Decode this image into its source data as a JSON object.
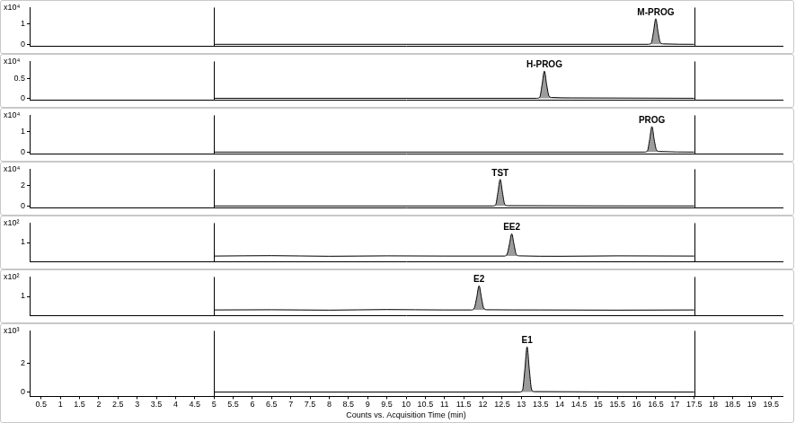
{
  "chart_data": [
    {
      "type": "line",
      "annotation": "M-PROG",
      "y_label": "x10⁴",
      "tick_labels": "y",
      "grid": false,
      "xlim": [
        0.2,
        19.8
      ],
      "ylim": [
        -0.1,
        1.8
      ],
      "yticks": [
        0,
        1
      ],
      "color": "#000000",
      "x": [
        5,
        16.3,
        16.38,
        16.44,
        16.5,
        16.56,
        16.62,
        16.7,
        17.5
      ],
      "values": [
        0,
        0,
        0.05,
        0.6,
        1.25,
        0.6,
        0.08,
        0.02,
        0
      ]
    },
    {
      "type": "line",
      "annotation": "H-PROG",
      "y_label": "x10⁴",
      "tick_labels": "y",
      "grid": false,
      "xlim": [
        0.2,
        19.8
      ],
      "ylim": [
        -0.05,
        0.95
      ],
      "yticks": [
        0,
        0.5
      ],
      "color": "#000000",
      "x": [
        5,
        13.4,
        13.48,
        13.54,
        13.6,
        13.66,
        13.72,
        13.8,
        14.3,
        17.5
      ],
      "values": [
        0,
        0,
        0.03,
        0.35,
        0.7,
        0.35,
        0.06,
        0.02,
        0.01,
        0
      ]
    },
    {
      "type": "line",
      "annotation": "PROG",
      "y_label": "x10⁴",
      "tick_labels": "y",
      "grid": false,
      "xlim": [
        0.2,
        19.8
      ],
      "ylim": [
        -0.1,
        1.8
      ],
      "yticks": [
        0,
        1
      ],
      "color": "#000000",
      "x": [
        5,
        16.2,
        16.28,
        16.34,
        16.4,
        16.46,
        16.52,
        16.6,
        17.5
      ],
      "values": [
        0,
        0,
        0.05,
        0.6,
        1.25,
        0.6,
        0.1,
        0.03,
        0
      ]
    },
    {
      "type": "line",
      "annotation": "TST",
      "y_label": "x10⁴",
      "tick_labels": "y",
      "grid": false,
      "xlim": [
        0.2,
        19.8
      ],
      "ylim": [
        -0.2,
        3.6
      ],
      "yticks": [
        0,
        2
      ],
      "color": "#000000",
      "x": [
        5,
        12.25,
        12.33,
        12.39,
        12.45,
        12.51,
        12.57,
        12.65,
        17.5
      ],
      "values": [
        0,
        0,
        0.1,
        1.3,
        2.6,
        1.3,
        0.15,
        0.03,
        0
      ]
    },
    {
      "type": "line",
      "annotation": "EE2",
      "y_label": "x10²",
      "tick_labels": "y",
      "grid": false,
      "xlim": [
        0.2,
        19.8
      ],
      "ylim": [
        0,
        2
      ],
      "yticks": [
        1
      ],
      "color": "#000000",
      "x": [
        5,
        6.5,
        8,
        9.5,
        11,
        12.55,
        12.63,
        12.69,
        12.75,
        12.81,
        12.87,
        12.95,
        14,
        15.5,
        17.5
      ],
      "values": [
        0.3,
        0.32,
        0.29,
        0.31,
        0.3,
        0.3,
        0.4,
        0.9,
        1.45,
        0.9,
        0.38,
        0.31,
        0.29,
        0.31,
        0.3
      ]
    },
    {
      "type": "line",
      "annotation": "E2",
      "y_label": "x10²",
      "tick_labels": "y",
      "grid": false,
      "xlim": [
        0.2,
        19.8
      ],
      "ylim": [
        0,
        2
      ],
      "yticks": [
        1
      ],
      "color": "#000000",
      "x": [
        5,
        6.5,
        8,
        9.5,
        11,
        11.7,
        11.78,
        11.84,
        11.9,
        11.96,
        12.02,
        12.1,
        13.5,
        15.5,
        17.5
      ],
      "values": [
        0.3,
        0.31,
        0.29,
        0.32,
        0.3,
        0.3,
        0.42,
        0.95,
        1.55,
        0.95,
        0.4,
        0.31,
        0.3,
        0.29,
        0.3
      ]
    },
    {
      "type": "line",
      "annotation": "E1",
      "y_label": "x10³",
      "tick_labels": true,
      "grid": false,
      "x_label": "Counts vs. Acquisition Time (min)",
      "xlim": [
        0.2,
        19.8
      ],
      "ylim": [
        -0.3,
        4.2
      ],
      "xticks": [
        0.5,
        1,
        1.5,
        2,
        2.5,
        3,
        3.5,
        4,
        4.5,
        5,
        5.5,
        6,
        6.5,
        7,
        7.5,
        8,
        8.5,
        9,
        9.5,
        10,
        10.5,
        11,
        11.5,
        12,
        12.5,
        13,
        13.5,
        14,
        14.5,
        15,
        15.5,
        16,
        16.5,
        17,
        17.5,
        18,
        18.5,
        19,
        19.5
      ],
      "yticks": [
        0,
        2
      ],
      "color": "#000000",
      "x": [
        5,
        12.95,
        13.03,
        13.09,
        13.15,
        13.21,
        13.27,
        13.35,
        17.5
      ],
      "values": [
        0,
        0,
        0.12,
        1.5,
        3.1,
        1.5,
        0.15,
        0.03,
        0
      ]
    }
  ]
}
